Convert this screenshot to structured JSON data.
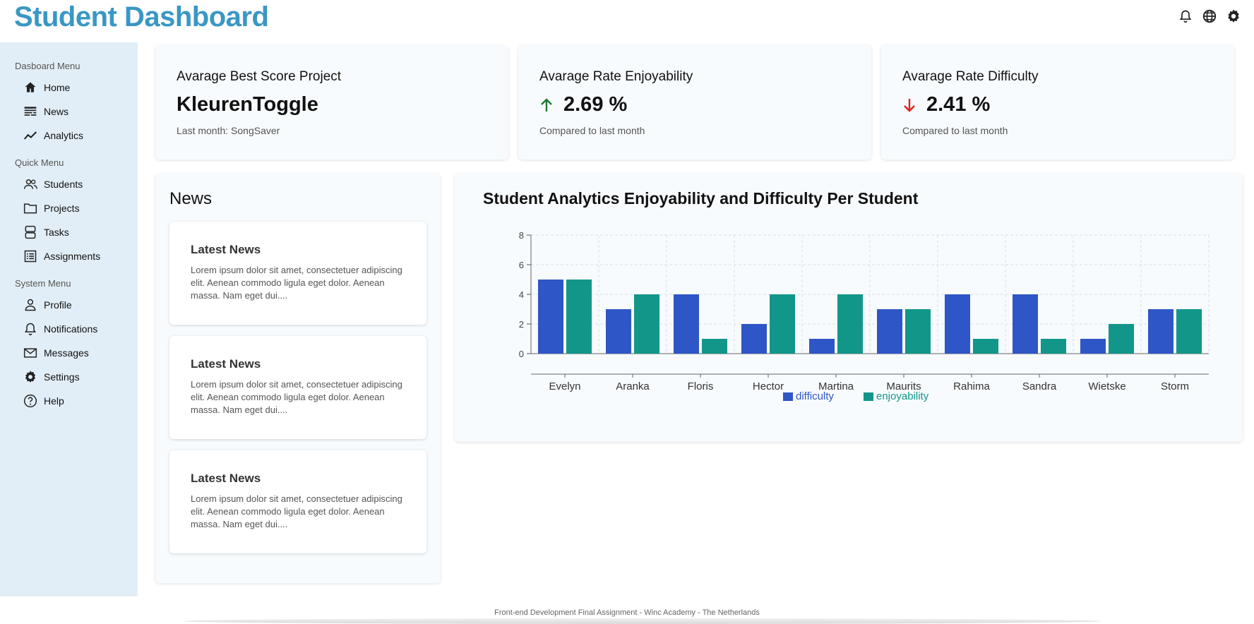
{
  "app": {
    "title": "Student Dashboard"
  },
  "header": {
    "icons": [
      "bell-icon",
      "globe-icon",
      "gear-icon"
    ]
  },
  "sidebar": {
    "groups": [
      {
        "heading": "Dasboard Menu",
        "items": [
          {
            "label": "Home",
            "icon": "home-icon"
          },
          {
            "label": "News",
            "icon": "news-icon"
          },
          {
            "label": "Analytics",
            "icon": "analytics-icon"
          }
        ]
      },
      {
        "heading": "Quick Menu",
        "items": [
          {
            "label": "Students",
            "icon": "students-icon"
          },
          {
            "label": "Projects",
            "icon": "folder-icon"
          },
          {
            "label": "Tasks",
            "icon": "tasks-icon"
          },
          {
            "label": "Assignments",
            "icon": "assignments-icon"
          }
        ]
      },
      {
        "heading": "System Menu",
        "items": [
          {
            "label": "Profile",
            "icon": "profile-icon"
          },
          {
            "label": "Notifications",
            "icon": "bell-icon"
          },
          {
            "label": "Messages",
            "icon": "mail-icon"
          },
          {
            "label": "Settings",
            "icon": "gear-icon"
          },
          {
            "label": "Help",
            "icon": "help-icon"
          }
        ]
      }
    ]
  },
  "stats": [
    {
      "title": "Avarage Best Score Project",
      "value": "KleurenToggle",
      "trend": "none",
      "sub": "Last month: SongSaver"
    },
    {
      "title": "Avarage Rate Enjoyability",
      "value": "2.69 %",
      "trend": "up",
      "sub": "Compared to last month"
    },
    {
      "title": "Avarage Rate Difficulty",
      "value": "2.41 %",
      "trend": "down",
      "sub": "Compared to last month"
    }
  ],
  "colors": {
    "up": "#1e7a2e",
    "down": "#e0201c",
    "difficulty": "#2f56c6",
    "enjoyability": "#12968a",
    "title": "#3a97c4"
  },
  "news": {
    "heading": "News",
    "items": [
      {
        "title": "Latest News",
        "body": "Lorem ipsum dolor sit amet, consectetuer adipiscing elit. Aenean commodo ligula eget dolor. Aenean massa. Nam eget dui...."
      },
      {
        "title": "Latest News",
        "body": "Lorem ipsum dolor sit amet, consectetuer adipiscing elit. Aenean commodo ligula eget dolor. Aenean massa. Nam eget dui...."
      },
      {
        "title": "Latest News",
        "body": "Lorem ipsum dolor sit amet, consectetuer adipiscing elit. Aenean commodo ligula eget dolor. Aenean massa. Nam eget dui...."
      }
    ]
  },
  "chart_data": {
    "type": "bar",
    "title": "Student Analytics Enjoyability and Difficulty Per Student",
    "categories": [
      "Evelyn",
      "Aranka",
      "Floris",
      "Hector",
      "Martina",
      "Maurits",
      "Rahima",
      "Sandra",
      "Wietske",
      "Storm"
    ],
    "series": [
      {
        "name": "difficulty",
        "values": [
          5,
          3,
          4,
          2,
          1,
          3,
          4,
          4,
          1,
          3
        ]
      },
      {
        "name": "enjoyability",
        "values": [
          5,
          4,
          1,
          4,
          4,
          3,
          1,
          1,
          2,
          3
        ]
      }
    ],
    "ylim": [
      0,
      8
    ],
    "yticks": [
      0,
      2,
      4,
      6,
      8
    ],
    "grid": true,
    "legend": "bottom"
  },
  "footer": {
    "text": "Front-end Development Final Assignment - Winc Academy - The Netherlands"
  }
}
